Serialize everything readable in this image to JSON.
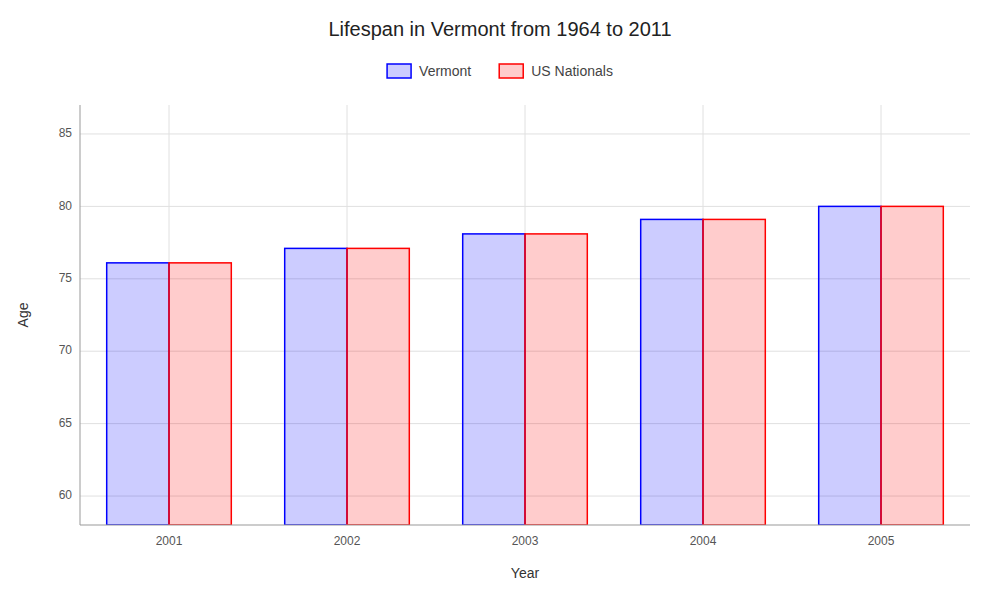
{
  "chart_data": {
    "type": "bar",
    "title": "Lifespan in Vermont from 1964 to 2011",
    "xlabel": "Year",
    "ylabel": "Age",
    "categories": [
      "2001",
      "2002",
      "2003",
      "2004",
      "2005"
    ],
    "series": [
      {
        "name": "Vermont",
        "color": "#0000ff",
        "values": [
          76.1,
          77.1,
          78.1,
          79.1,
          80.0
        ]
      },
      {
        "name": "US Nationals",
        "color": "#ff0000",
        "values": [
          76.1,
          77.1,
          78.1,
          79.1,
          80.0
        ]
      }
    ],
    "ylim": [
      58,
      87
    ],
    "yticks": [
      60,
      65,
      70,
      75,
      80,
      85
    ],
    "grid": true,
    "legend": "top"
  }
}
